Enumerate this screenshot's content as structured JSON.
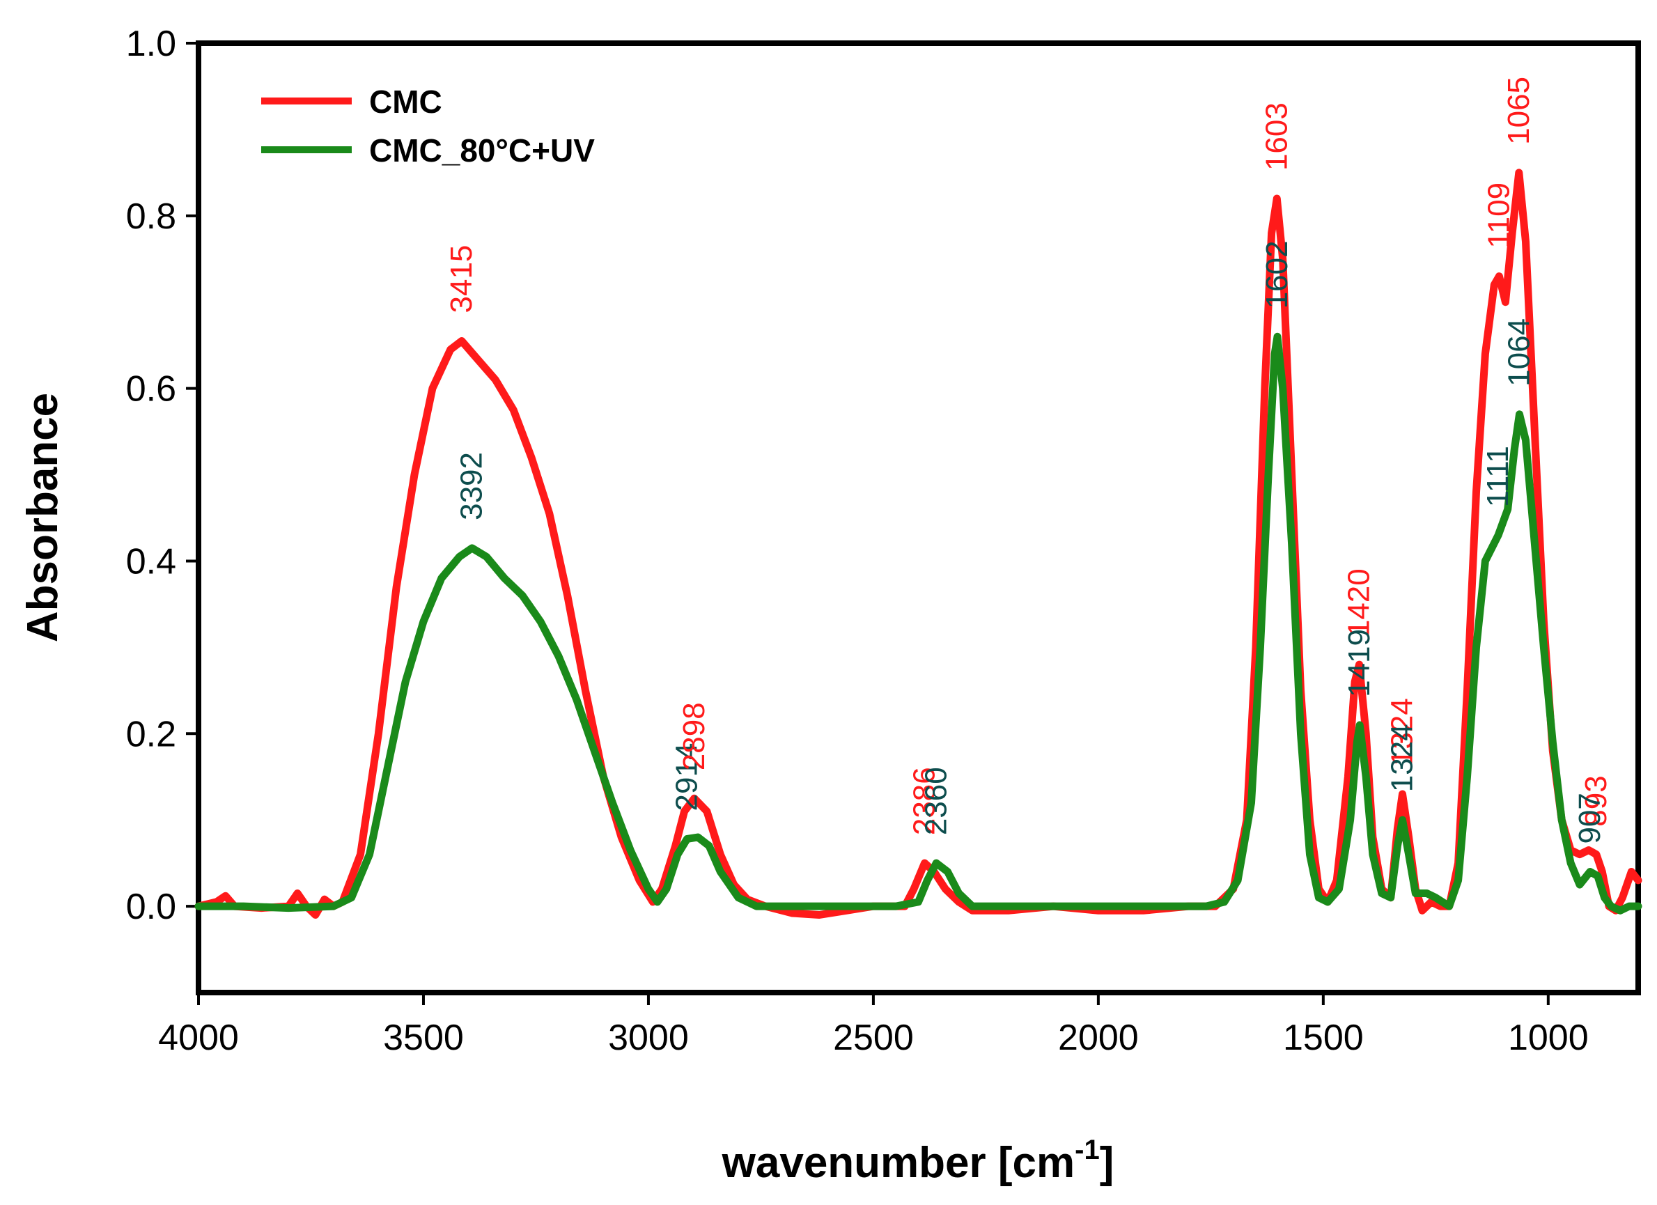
{
  "chart_data": {
    "type": "line",
    "title": "",
    "xlabel": "wavenumber [cm",
    "xlabel_sup": "-1",
    "xlabel_suffix": "]",
    "ylabel": "Absorbance",
    "xlim": [
      4000,
      800
    ],
    "ylim": [
      -0.1,
      1.0
    ],
    "x_ticks": [
      4000,
      3500,
      3000,
      2500,
      2000,
      1500,
      1000
    ],
    "x_tick_labels": [
      "4000",
      "3500",
      "3000",
      "2500",
      "2000",
      "1500",
      "1000"
    ],
    "y_ticks": [
      0.0,
      0.2,
      0.4,
      0.6,
      0.8,
      1.0
    ],
    "y_tick_labels": [
      "0.0",
      "0.2",
      "0.4",
      "0.6",
      "0.8",
      "1.0"
    ],
    "grid": false,
    "legend_position": "top-left",
    "series": [
      {
        "name": "CMC",
        "color": "#ff1a1a",
        "points": [
          [
            4000,
            0.0
          ],
          [
            3960,
            0.005
          ],
          [
            3940,
            0.012
          ],
          [
            3920,
            0.0
          ],
          [
            3860,
            -0.002
          ],
          [
            3800,
            0.0
          ],
          [
            3780,
            0.015
          ],
          [
            3760,
            0.0
          ],
          [
            3740,
            -0.01
          ],
          [
            3720,
            0.008
          ],
          [
            3700,
            0.0
          ],
          [
            3680,
            0.005
          ],
          [
            3640,
            0.06
          ],
          [
            3600,
            0.2
          ],
          [
            3560,
            0.37
          ],
          [
            3520,
            0.5
          ],
          [
            3480,
            0.6
          ],
          [
            3440,
            0.645
          ],
          [
            3415,
            0.655
          ],
          [
            3390,
            0.64
          ],
          [
            3340,
            0.61
          ],
          [
            3300,
            0.575
          ],
          [
            3260,
            0.52
          ],
          [
            3220,
            0.455
          ],
          [
            3180,
            0.36
          ],
          [
            3140,
            0.25
          ],
          [
            3100,
            0.15
          ],
          [
            3060,
            0.08
          ],
          [
            3020,
            0.03
          ],
          [
            2990,
            0.005
          ],
          [
            2970,
            0.02
          ],
          [
            2940,
            0.07
          ],
          [
            2920,
            0.11
          ],
          [
            2898,
            0.125
          ],
          [
            2870,
            0.11
          ],
          [
            2840,
            0.06
          ],
          [
            2810,
            0.025
          ],
          [
            2780,
            0.008
          ],
          [
            2740,
            0.0
          ],
          [
            2680,
            -0.008
          ],
          [
            2620,
            -0.01
          ],
          [
            2560,
            -0.005
          ],
          [
            2500,
            0.0
          ],
          [
            2430,
            0.0
          ],
          [
            2410,
            0.02
          ],
          [
            2386,
            0.05
          ],
          [
            2365,
            0.04
          ],
          [
            2340,
            0.02
          ],
          [
            2310,
            0.005
          ],
          [
            2280,
            -0.005
          ],
          [
            2200,
            -0.005
          ],
          [
            2100,
            0.0
          ],
          [
            2000,
            -0.005
          ],
          [
            1900,
            -0.005
          ],
          [
            1800,
            0.0
          ],
          [
            1740,
            0.0
          ],
          [
            1700,
            0.02
          ],
          [
            1670,
            0.1
          ],
          [
            1650,
            0.3
          ],
          [
            1630,
            0.6
          ],
          [
            1615,
            0.78
          ],
          [
            1603,
            0.82
          ],
          [
            1590,
            0.75
          ],
          [
            1570,
            0.5
          ],
          [
            1550,
            0.25
          ],
          [
            1530,
            0.1
          ],
          [
            1510,
            0.02
          ],
          [
            1490,
            0.005
          ],
          [
            1470,
            0.03
          ],
          [
            1445,
            0.15
          ],
          [
            1430,
            0.26
          ],
          [
            1420,
            0.28
          ],
          [
            1405,
            0.2
          ],
          [
            1390,
            0.08
          ],
          [
            1370,
            0.02
          ],
          [
            1350,
            0.01
          ],
          [
            1335,
            0.09
          ],
          [
            1324,
            0.13
          ],
          [
            1310,
            0.08
          ],
          [
            1295,
            0.02
          ],
          [
            1280,
            -0.005
          ],
          [
            1260,
            0.005
          ],
          [
            1240,
            0.0
          ],
          [
            1220,
            0.0
          ],
          [
            1200,
            0.05
          ],
          [
            1180,
            0.25
          ],
          [
            1160,
            0.48
          ],
          [
            1140,
            0.64
          ],
          [
            1120,
            0.72
          ],
          [
            1109,
            0.73
          ],
          [
            1095,
            0.7
          ],
          [
            1080,
            0.78
          ],
          [
            1065,
            0.85
          ],
          [
            1050,
            0.77
          ],
          [
            1030,
            0.55
          ],
          [
            1010,
            0.33
          ],
          [
            990,
            0.18
          ],
          [
            970,
            0.1
          ],
          [
            950,
            0.065
          ],
          [
            930,
            0.06
          ],
          [
            910,
            0.065
          ],
          [
            893,
            0.06
          ],
          [
            880,
            0.04
          ],
          [
            865,
            0.0
          ],
          [
            850,
            -0.005
          ],
          [
            835,
            0.01
          ],
          [
            815,
            0.04
          ],
          [
            800,
            0.03
          ]
        ]
      },
      {
        "name": "CMC_80°C+UV",
        "color": "#1a8a1a",
        "points": [
          [
            4000,
            0.0
          ],
          [
            3900,
            0.0
          ],
          [
            3800,
            -0.002
          ],
          [
            3700,
            0.0
          ],
          [
            3660,
            0.01
          ],
          [
            3620,
            0.06
          ],
          [
            3580,
            0.16
          ],
          [
            3540,
            0.26
          ],
          [
            3500,
            0.33
          ],
          [
            3460,
            0.38
          ],
          [
            3420,
            0.405
          ],
          [
            3392,
            0.415
          ],
          [
            3360,
            0.405
          ],
          [
            3320,
            0.38
          ],
          [
            3280,
            0.36
          ],
          [
            3240,
            0.33
          ],
          [
            3200,
            0.29
          ],
          [
            3160,
            0.24
          ],
          [
            3120,
            0.18
          ],
          [
            3080,
            0.12
          ],
          [
            3040,
            0.065
          ],
          [
            3000,
            0.02
          ],
          [
            2980,
            0.005
          ],
          [
            2960,
            0.02
          ],
          [
            2935,
            0.06
          ],
          [
            2914,
            0.078
          ],
          [
            2890,
            0.08
          ],
          [
            2865,
            0.07
          ],
          [
            2840,
            0.04
          ],
          [
            2800,
            0.01
          ],
          [
            2760,
            0.0
          ],
          [
            2600,
            0.0
          ],
          [
            2450,
            0.0
          ],
          [
            2400,
            0.005
          ],
          [
            2380,
            0.03
          ],
          [
            2360,
            0.05
          ],
          [
            2335,
            0.04
          ],
          [
            2310,
            0.015
          ],
          [
            2280,
            0.0
          ],
          [
            2100,
            0.0
          ],
          [
            1900,
            0.0
          ],
          [
            1760,
            0.0
          ],
          [
            1720,
            0.005
          ],
          [
            1690,
            0.03
          ],
          [
            1660,
            0.12
          ],
          [
            1640,
            0.3
          ],
          [
            1622,
            0.5
          ],
          [
            1608,
            0.64
          ],
          [
            1602,
            0.66
          ],
          [
            1590,
            0.6
          ],
          [
            1570,
            0.42
          ],
          [
            1550,
            0.2
          ],
          [
            1530,
            0.06
          ],
          [
            1510,
            0.01
          ],
          [
            1490,
            0.005
          ],
          [
            1465,
            0.02
          ],
          [
            1440,
            0.1
          ],
          [
            1425,
            0.19
          ],
          [
            1419,
            0.21
          ],
          [
            1405,
            0.15
          ],
          [
            1390,
            0.06
          ],
          [
            1370,
            0.015
          ],
          [
            1350,
            0.01
          ],
          [
            1335,
            0.07
          ],
          [
            1324,
            0.1
          ],
          [
            1310,
            0.06
          ],
          [
            1295,
            0.015
          ],
          [
            1270,
            0.015
          ],
          [
            1250,
            0.01
          ],
          [
            1220,
            0.0
          ],
          [
            1200,
            0.03
          ],
          [
            1180,
            0.15
          ],
          [
            1160,
            0.3
          ],
          [
            1140,
            0.4
          ],
          [
            1111,
            0.43
          ],
          [
            1090,
            0.46
          ],
          [
            1075,
            0.53
          ],
          [
            1064,
            0.57
          ],
          [
            1050,
            0.54
          ],
          [
            1030,
            0.42
          ],
          [
            1010,
            0.3
          ],
          [
            990,
            0.19
          ],
          [
            970,
            0.1
          ],
          [
            950,
            0.05
          ],
          [
            930,
            0.025
          ],
          [
            907,
            0.04
          ],
          [
            890,
            0.035
          ],
          [
            875,
            0.01
          ],
          [
            860,
            0.0
          ],
          [
            840,
            -0.005
          ],
          [
            820,
            0.0
          ],
          [
            800,
            0.0
          ]
        ]
      }
    ],
    "peak_labels": [
      {
        "text": "3415",
        "x": 3415,
        "y": 0.655,
        "series": 0
      },
      {
        "text": "3392",
        "x": 3392,
        "y": 0.415,
        "series": 1
      },
      {
        "text": "2914",
        "x": 2914,
        "y": 0.078,
        "series": 1
      },
      {
        "text": "2898",
        "x": 2898,
        "y": 0.125,
        "series": 0
      },
      {
        "text": "2386",
        "x": 2386,
        "y": 0.05,
        "series": 0
      },
      {
        "text": "2360",
        "x": 2360,
        "y": 0.05,
        "series": 1
      },
      {
        "text": "1603",
        "x": 1603,
        "y": 0.82,
        "series": 0
      },
      {
        "text": "1602",
        "x": 1602,
        "y": 0.66,
        "series": 1
      },
      {
        "text": "1420",
        "x": 1420,
        "y": 0.28,
        "series": 0
      },
      {
        "text": "1419",
        "x": 1419,
        "y": 0.21,
        "series": 1
      },
      {
        "text": "1324",
        "x": 1324,
        "y": 0.13,
        "series": 0
      },
      {
        "text": "1324",
        "x": 1324,
        "y": 0.1,
        "series": 1
      },
      {
        "text": "1109",
        "x": 1109,
        "y": 0.73,
        "series": 0
      },
      {
        "text": "1111",
        "x": 1111,
        "y": 0.43,
        "series": 1
      },
      {
        "text": "1065",
        "x": 1065,
        "y": 0.85,
        "series": 0
      },
      {
        "text": "1064",
        "x": 1064,
        "y": 0.57,
        "series": 1
      },
      {
        "text": "893",
        "x": 893,
        "y": 0.06,
        "series": 0
      },
      {
        "text": "907",
        "x": 907,
        "y": 0.04,
        "series": 1
      }
    ],
    "peak_label_colors": [
      "#ff1a1a",
      "#0d4d4d"
    ]
  }
}
